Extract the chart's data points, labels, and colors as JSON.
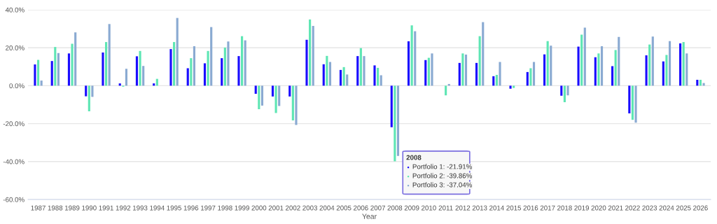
{
  "chart_data": {
    "type": "bar",
    "xlabel": "Year",
    "categories": [
      "1987",
      "1988",
      "1989",
      "1990",
      "1991",
      "1992",
      "1993",
      "1994",
      "1995",
      "1996",
      "1997",
      "1998",
      "1999",
      "2000",
      "2001",
      "2002",
      "2003",
      "2004",
      "2005",
      "2006",
      "2007",
      "2008",
      "2009",
      "2010",
      "2011",
      "2012",
      "2013",
      "2014",
      "2015",
      "2016",
      "2017",
      "2018",
      "2019",
      "2020",
      "2021",
      "2022",
      "2023",
      "2024",
      "2025",
      "2026"
    ],
    "series": [
      {
        "color": "#1a0dff",
        "values": [
          11.2,
          13.0,
          17.0,
          -5.6,
          17.5,
          1.2,
          15.5,
          1.2,
          19.3,
          9.2,
          11.8,
          14.5,
          15.6,
          -4.3,
          -5.7,
          -5.7,
          24.2,
          11.3,
          8.3,
          15.6,
          10.7,
          -21.91,
          23.4,
          13.5,
          null,
          12.0,
          12.0,
          5.0,
          -1.6,
          7.2,
          16.5,
          -5.3,
          20.6,
          15.0,
          10.3,
          -14.6,
          16.0,
          12.8,
          22.3,
          3.1
        ]
      },
      {
        "color": "#5ee6b4",
        "values": [
          13.6,
          20.4,
          22.1,
          -13.5,
          23.0,
          -0.5,
          18.3,
          3.6,
          23.0,
          14.5,
          18.3,
          20.1,
          26.1,
          -12.4,
          -14.4,
          -18.3,
          34.9,
          15.7,
          9.8,
          19.8,
          9.4,
          -39.86,
          31.8,
          14.7,
          -5.1,
          17.0,
          26.1,
          5.7,
          -1.2,
          9.2,
          23.5,
          -8.7,
          26.9,
          17.0,
          18.8,
          -18.0,
          21.7,
          16.2,
          23.0,
          3.1
        ]
      },
      {
        "color": "#8aaad2",
        "values": [
          2.7,
          17.2,
          28.1,
          -5.9,
          32.5,
          8.9,
          10.4,
          null,
          35.7,
          20.8,
          30.9,
          23.3,
          23.9,
          -10.5,
          -10.7,
          -20.7,
          31.5,
          12.5,
          5.9,
          15.6,
          5.5,
          -37.04,
          28.7,
          17.0,
          0.9,
          16.4,
          33.5,
          12.5,
          null,
          12.5,
          21.1,
          -5.1,
          30.6,
          20.8,
          25.7,
          -19.5,
          25.9,
          23.5,
          17.0,
          1.4
        ]
      }
    ],
    "ylim": [
      -60,
      40
    ],
    "yticks": [
      {
        "value": -60,
        "label": "-60.0%"
      },
      {
        "value": -40,
        "label": "-40.0%"
      },
      {
        "value": -20,
        "label": "-20.0%"
      },
      {
        "value": 0,
        "label": "0.0%"
      },
      {
        "value": 20,
        "label": "20.0%"
      },
      {
        "value": 40,
        "label": "40.0%"
      }
    ],
    "grid": "y",
    "annotations": [
      "2008",
      "Portfolio 1: -21.91%",
      "Portfolio 2: -39.86%",
      "Portfolio 3: -37.04%"
    ]
  }
}
